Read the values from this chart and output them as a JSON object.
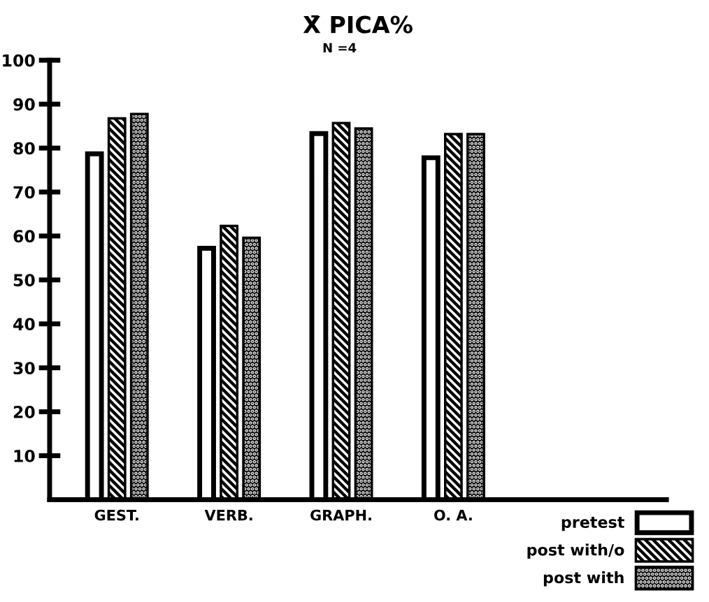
{
  "chart_data": {
    "type": "bar",
    "title": "X̄ PICA%",
    "subtitle": "N =4",
    "categories": [
      "GEST.",
      "VERB.",
      "GRAPH.",
      "O. A."
    ],
    "series": [
      {
        "name": "pretest",
        "color": "#ffffff",
        "values": [
          78.7,
          57.2,
          83.3,
          77.8
        ]
      },
      {
        "name": "post with/o",
        "color": "#000000",
        "values": [
          86.5,
          62,
          85.4,
          82.9
        ]
      },
      {
        "name": "post with",
        "color": "#000000",
        "values": [
          87.5,
          59.3,
          84.2,
          82.9
        ]
      }
    ],
    "ylim": [
      0,
      100
    ],
    "yticks": [
      10,
      20,
      30,
      40,
      50,
      60,
      70,
      80,
      90,
      100
    ],
    "grid": false,
    "legend": "bottom right"
  }
}
